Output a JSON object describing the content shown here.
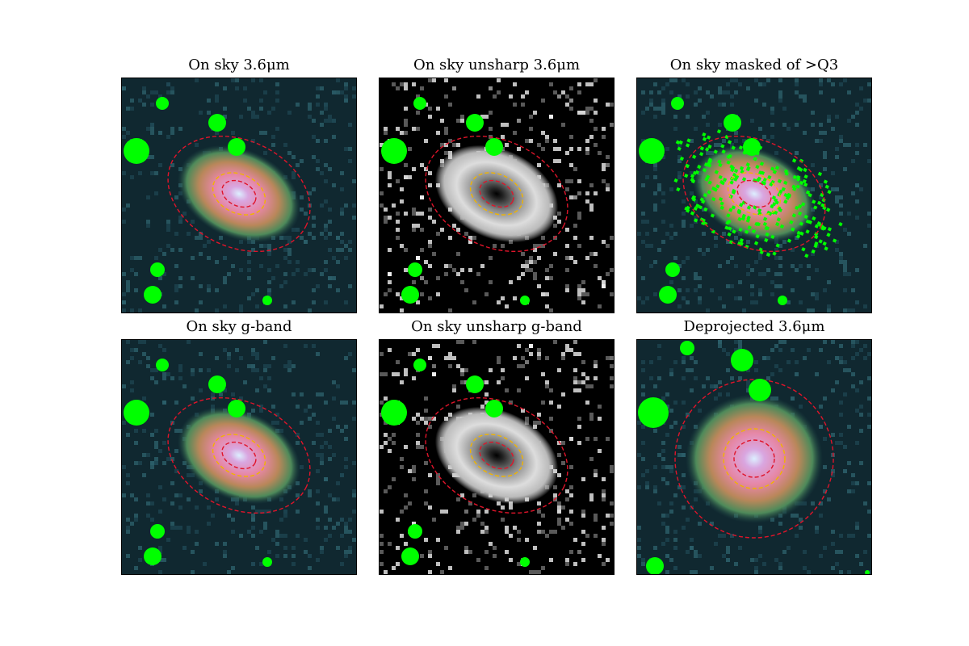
{
  "figure": {
    "panels": [
      {
        "title": "On sky 3.6μm",
        "style": "color",
        "disk": true,
        "mask": "none",
        "tilt": true
      },
      {
        "title": "On sky unsharp 3.6μm",
        "style": "gray",
        "disk": true,
        "mask": "none",
        "tilt": true
      },
      {
        "title": "On sky masked of >Q3",
        "style": "color",
        "disk": true,
        "mask": "q3",
        "tilt": true
      },
      {
        "title": "On sky g-band",
        "style": "color",
        "disk": true,
        "mask": "none",
        "tilt": true
      },
      {
        "title": "On sky unsharp g-band",
        "style": "gray",
        "disk": true,
        "mask": "none",
        "tilt": true
      },
      {
        "title": "Deprojected 3.6μm",
        "style": "color",
        "disk": true,
        "mask": "none",
        "tilt": false
      }
    ],
    "colors": {
      "mask_green": "#00ff00",
      "ellipse_outer": "#e0142a",
      "ellipse_mid": "#f0b400",
      "ellipse_inner": "#e0142a",
      "background_dark": "#102830"
    }
  }
}
